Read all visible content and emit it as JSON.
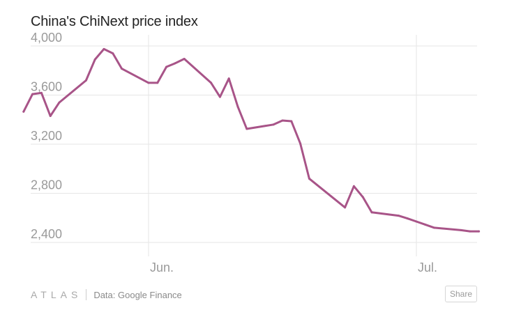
{
  "title": "China's ChiNext price index",
  "footer": {
    "brand": "ATLAS",
    "source": "Data: Google Finance",
    "share_label": "Share"
  },
  "colors": {
    "line": "#a85488",
    "grid": "#e6e6e6",
    "tick_text": "#9a9a9a"
  },
  "chart_data": {
    "type": "line",
    "title": "China's ChiNext price index",
    "xlabel": "",
    "ylabel": "",
    "ylim": [
      2400,
      4000
    ],
    "yticks": [
      2400,
      2800,
      3200,
      3600,
      4000
    ],
    "ytick_labels": [
      "2,400",
      "2,800",
      "3,200",
      "3,600",
      "4,000"
    ],
    "xticks": [
      {
        "date": "2015-06-01",
        "label": "Jun."
      },
      {
        "date": "2015-07-01",
        "label": "Jul."
      }
    ],
    "grid": true,
    "series": [
      {
        "name": "",
        "x": [
          "2015-05-18",
          "2015-05-19",
          "2015-05-20",
          "2015-05-21",
          "2015-05-22",
          "2015-05-25",
          "2015-05-26",
          "2015-05-27",
          "2015-05-28",
          "2015-05-29",
          "2015-06-01",
          "2015-06-02",
          "2015-06-03",
          "2015-06-04",
          "2015-06-05",
          "2015-06-08",
          "2015-06-09",
          "2015-06-10",
          "2015-06-11",
          "2015-06-12",
          "2015-06-15",
          "2015-06-16",
          "2015-06-17",
          "2015-06-18",
          "2015-06-19",
          "2015-06-23",
          "2015-06-24",
          "2015-06-25",
          "2015-06-26",
          "2015-06-29",
          "2015-06-30",
          "2015-07-01",
          "2015-07-02",
          "2015-07-03",
          "2015-07-06",
          "2015-07-07",
          "2015-07-08"
        ],
        "values": [
          3465,
          3608,
          3618,
          3430,
          3540,
          3720,
          3890,
          3975,
          3940,
          3815,
          3700,
          3700,
          3830,
          3860,
          3895,
          3700,
          3585,
          3735,
          3505,
          3325,
          3360,
          3393,
          3387,
          3205,
          2920,
          2685,
          2858,
          2770,
          2645,
          2618,
          2595,
          2570,
          2545,
          2520,
          2500,
          2490,
          2490
        ]
      }
    ]
  }
}
